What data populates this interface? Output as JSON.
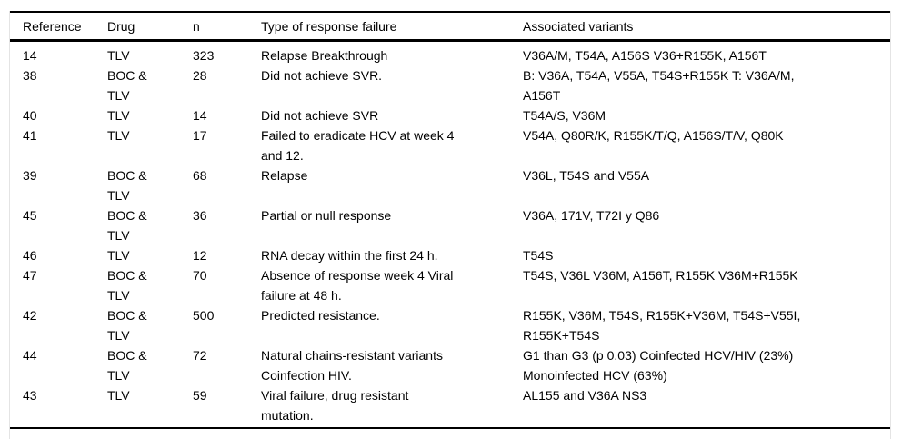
{
  "colors": {
    "rule": "#000000",
    "side_border": "#e4e4e4",
    "text": "#000000",
    "background": "#ffffff"
  },
  "table": {
    "columns": [
      {
        "key": "reference",
        "label": "Reference"
      },
      {
        "key": "drug",
        "label": "Drug"
      },
      {
        "key": "n",
        "label": "n"
      },
      {
        "key": "type",
        "label": "Type of response failure"
      },
      {
        "key": "variants",
        "label": "Associated variants"
      }
    ],
    "rows": [
      {
        "reference": "14",
        "drug": "TLV",
        "n": "323",
        "type": "Relapse Breakthrough",
        "variants": "V36A/M, T54A, A156S V36+R155K, A156T"
      },
      {
        "reference": "38",
        "drug": "BOC &\nTLV",
        "n": "28",
        "type": "Did not achieve SVR.",
        "variants": "B: V36A, T54A, V55A, T54S+R155K T: V36A/M,\nA156T"
      },
      {
        "reference": "40",
        "drug": "TLV",
        "n": "14",
        "type": "Did not achieve SVR",
        "variants": "T54A/S, V36M"
      },
      {
        "reference": "41",
        "drug": "TLV",
        "n": "17",
        "type": "Failed to eradicate HCV at week 4\nand 12.",
        "variants": "V54A, Q80R/K, R155K/T/Q, A156S/T/V, Q80K"
      },
      {
        "reference": "39",
        "drug": "BOC &\nTLV",
        "n": "68",
        "type": "Relapse",
        "variants": "V36L, T54S and V55A"
      },
      {
        "reference": "45",
        "drug": "BOC &\nTLV",
        "n": "36",
        "type": "Partial or null response",
        "variants": "V36A, 171V, T72I y Q86"
      },
      {
        "reference": "46",
        "drug": "TLV",
        "n": "12",
        "type": "RNA decay within the first 24 h.",
        "variants": "T54S"
      },
      {
        "reference": "47",
        "drug": "BOC &\nTLV",
        "n": "70",
        "type": "Absence of response week 4 Viral\nfailure at 48 h.",
        "variants": "T54S, V36L V36M, A156T, R155K V36M+R155K"
      },
      {
        "reference": "42",
        "drug": "BOC &\nTLV",
        "n": "500",
        "type": "Predicted resistance.",
        "variants": "R155K, V36M, T54S, R155K+V36M, T54S+V55I,\nR155K+T54S"
      },
      {
        "reference": "44",
        "drug": "BOC &\nTLV",
        "n": "72",
        "type": "Natural chains-resistant variants\nCoinfection HIV.",
        "variants": "G1 than G3 (p 0.03) Coinfected HCV/HIV (23%)\nMonoinfected HCV (63%)"
      },
      {
        "reference": "43",
        "drug": "TLV",
        "n": "59",
        "type": "Viral failure, drug resistant\nmutation.",
        "variants": "AL155 and V36A NS3"
      }
    ]
  }
}
